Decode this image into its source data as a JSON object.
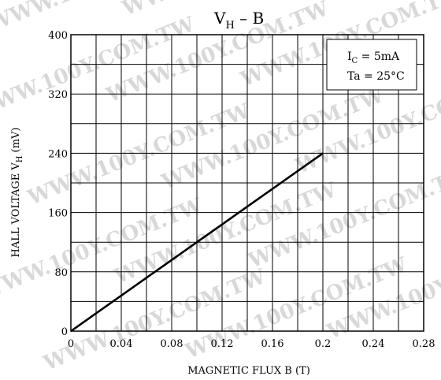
{
  "chart_data": {
    "type": "line",
    "title": {
      "main": "V",
      "sub": "H",
      "rest": " – B"
    },
    "xlabel": "MAGNETIC FLUX  B   (T)",
    "ylabel": {
      "pre": "HALL VOLTAGE  V",
      "sub": "H",
      "post": "  (mV)"
    },
    "xlim": [
      0,
      0.28
    ],
    "ylim": [
      0,
      400
    ],
    "x_ticks": [
      0,
      0.04,
      0.08,
      0.12,
      0.16,
      0.2,
      0.24,
      0.28
    ],
    "x_tick_labels": [
      "0",
      "0.04",
      "0.08",
      "0.12",
      "0.16",
      "0.2",
      "0.24",
      "0.28"
    ],
    "y_ticks": [
      0,
      80,
      160,
      240,
      320,
      400
    ],
    "y_tick_labels": [
      "0",
      "80",
      "160",
      "240",
      "320",
      "400"
    ],
    "x_minor_step": 0.02,
    "y_minor_step": 40,
    "grid": true,
    "series": [
      {
        "x": [
          0,
          0.02,
          0.04,
          0.06,
          0.08,
          0.1,
          0.12,
          0.14,
          0.16,
          0.18,
          0.2
        ],
        "y": [
          0,
          24,
          48,
          72,
          96,
          120,
          144,
          168,
          192,
          216,
          240
        ]
      }
    ],
    "annotations": {
      "line1": {
        "pre": "I",
        "sub": "C",
        "post": " = 5mA"
      },
      "line2": "Ta = 25°C"
    }
  },
  "watermark": "WWW.100Y.COM.TW"
}
